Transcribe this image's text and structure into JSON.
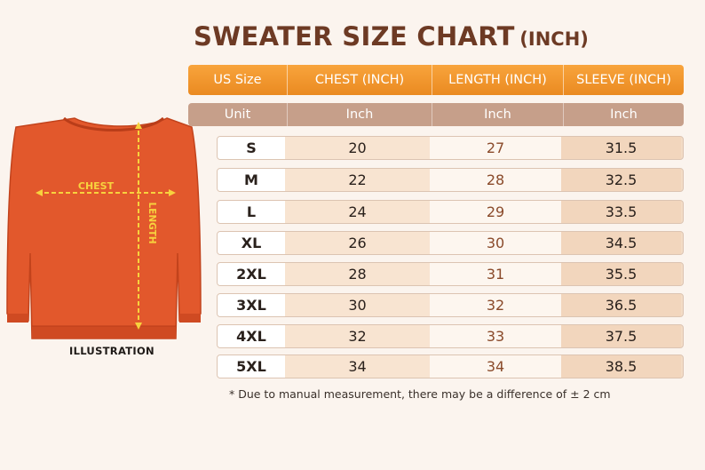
{
  "title": {
    "main": "SWEATER SIZE CHART",
    "unit": "(INCH)"
  },
  "headers": [
    "US Size",
    "CHEST (INCH)",
    "LENGTH (INCH)",
    "SLEEVE (INCH)"
  ],
  "units": [
    "Unit",
    "Inch",
    "Inch",
    "Inch"
  ],
  "rows": [
    {
      "size": "S",
      "chest": "20",
      "length": "27",
      "sleeve": "31.5"
    },
    {
      "size": "M",
      "chest": "22",
      "length": "28",
      "sleeve": "32.5"
    },
    {
      "size": "L",
      "chest": "24",
      "length": "29",
      "sleeve": "33.5"
    },
    {
      "size": "XL",
      "chest": "26",
      "length": "30",
      "sleeve": "34.5"
    },
    {
      "size": "2XL",
      "chest": "28",
      "length": "31",
      "sleeve": "35.5"
    },
    {
      "size": "3XL",
      "chest": "30",
      "length": "32",
      "sleeve": "36.5"
    },
    {
      "size": "4XL",
      "chest": "32",
      "length": "33",
      "sleeve": "37.5"
    },
    {
      "size": "5XL",
      "chest": "34",
      "length": "34",
      "sleeve": "38.5"
    }
  ],
  "illustration": {
    "label": "ILLUSTRATION",
    "chest_label": "CHEST",
    "length_label": "LENGTH",
    "color": "#e2582c",
    "arrow_color": "#f7d23e"
  },
  "footnote": "* Due to manual measurement, there may be a difference of ± 2 cm",
  "colors": {
    "header_orange": "#f29a2e",
    "unit_tan": "#c69f8a",
    "title_brown": "#6d3a24"
  }
}
